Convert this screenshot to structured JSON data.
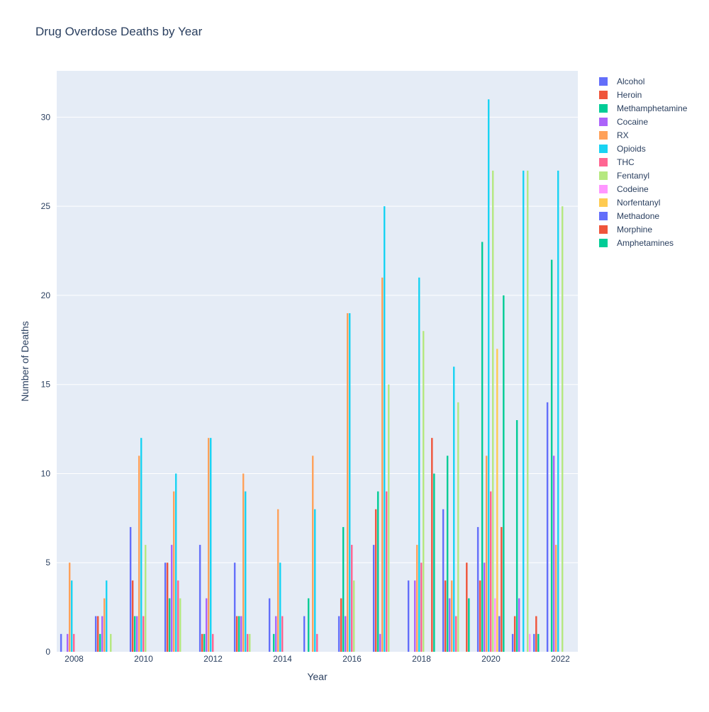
{
  "chart_data": {
    "type": "bar",
    "title": "Drug Overdose Deaths by Year",
    "xlabel": "Year",
    "ylabel": "Number of Deaths",
    "ylim": [
      0,
      32.6
    ],
    "xlim": [
      2007.5,
      2022.5
    ],
    "yticks": [
      0,
      5,
      10,
      15,
      20,
      25,
      30
    ],
    "xticks": [
      2008,
      2010,
      2012,
      2014,
      2016,
      2018,
      2020,
      2022
    ],
    "grid": true,
    "legend_position": "top-right",
    "years": [
      2008,
      2009,
      2010,
      2011,
      2012,
      2013,
      2014,
      2015,
      2016,
      2017,
      2018,
      2019,
      2020,
      2021,
      2022
    ],
    "series": [
      {
        "name": "Alcohol",
        "color": "#636efa",
        "values": [
          1,
          2,
          7,
          5,
          6,
          5,
          3,
          2,
          2,
          6,
          4,
          8,
          7,
          1,
          14
        ]
      },
      {
        "name": "Heroin",
        "color": "#EF553B",
        "values": [
          0,
          2,
          4,
          5,
          1,
          2,
          0,
          0,
          3,
          8,
          0,
          4,
          4,
          2,
          0
        ]
      },
      {
        "name": "Methamphetamine",
        "color": "#00cc96",
        "values": [
          0,
          1,
          2,
          3,
          1,
          2,
          1,
          3,
          7,
          9,
          0,
          11,
          23,
          13,
          22
        ]
      },
      {
        "name": "Cocaine",
        "color": "#ab63fa",
        "values": [
          1,
          2,
          2,
          6,
          3,
          2,
          2,
          0,
          2,
          1,
          4,
          3,
          5,
          3,
          11
        ]
      },
      {
        "name": "RX",
        "color": "#FFA15A",
        "values": [
          5,
          3,
          11,
          9,
          12,
          10,
          8,
          11,
          19,
          21,
          6,
          4,
          11,
          0,
          6
        ]
      },
      {
        "name": "Opioids",
        "color": "#19d3f3",
        "values": [
          4,
          4,
          12,
          10,
          12,
          9,
          5,
          8,
          19,
          25,
          21,
          16,
          31,
          27,
          27
        ]
      },
      {
        "name": "THC",
        "color": "#FF6692",
        "values": [
          1,
          0,
          2,
          4,
          1,
          1,
          2,
          1,
          6,
          9,
          5,
          2,
          9,
          0,
          0
        ]
      },
      {
        "name": "Fentanyl",
        "color": "#B6E880",
        "values": [
          0,
          1,
          6,
          3,
          0,
          1,
          0,
          0,
          4,
          15,
          18,
          14,
          27,
          27,
          25
        ]
      },
      {
        "name": "Codeine",
        "color": "#FF97FF",
        "values": [
          0,
          0,
          0,
          0,
          0,
          0,
          0,
          0,
          0,
          0,
          0,
          0,
          3,
          1,
          0
        ]
      },
      {
        "name": "Norfentanyl",
        "color": "#FECB52",
        "values": [
          0,
          0,
          0,
          0,
          0,
          0,
          0,
          0,
          0,
          0,
          0,
          0,
          17,
          0,
          0
        ]
      },
      {
        "name": "Methadone",
        "color": "#636efa",
        "values": [
          0,
          0,
          0,
          0,
          0,
          0,
          0,
          0,
          0,
          0,
          0,
          0,
          2,
          1,
          0
        ]
      },
      {
        "name": "Morphine",
        "color": "#EF553B",
        "values": [
          0,
          0,
          0,
          0,
          0,
          0,
          0,
          0,
          0,
          0,
          12,
          5,
          7,
          2,
          0
        ]
      },
      {
        "name": "Amphetamines",
        "color": "#00cc96",
        "values": [
          0,
          0,
          0,
          0,
          0,
          0,
          0,
          0,
          0,
          0,
          10,
          3,
          20,
          1,
          0
        ]
      }
    ]
  }
}
